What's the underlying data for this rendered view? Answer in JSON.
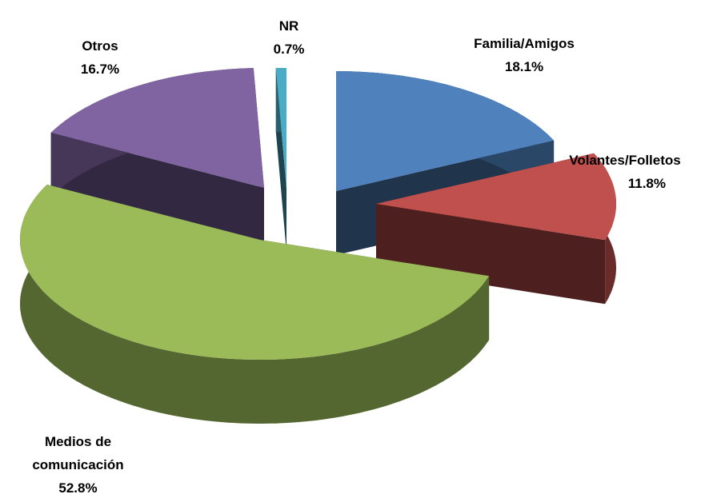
{
  "chart_data": {
    "type": "pie3d",
    "categories": [
      "Familia/Amigos",
      "Volantes/Folletos",
      "Medios de comunicación",
      "Otros",
      "NR"
    ],
    "values": [
      18.1,
      11.8,
      52.8,
      16.7,
      0.7
    ],
    "value_labels": [
      "18.1%",
      "11.8%",
      "52.8%",
      "16.7%",
      "0.7%"
    ],
    "colors": [
      "#4f81bd",
      "#c0504d",
      "#9bbb59",
      "#8064a2",
      "#4bacc6"
    ]
  }
}
